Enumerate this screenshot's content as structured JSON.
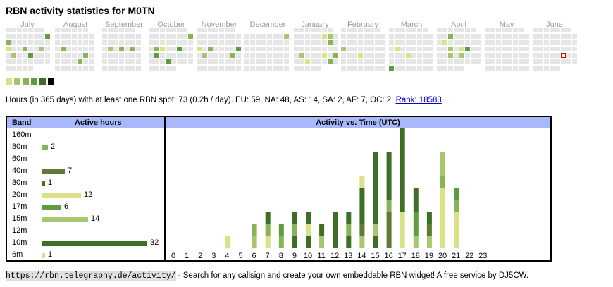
{
  "title": "RBN activity statistics for M0TN",
  "months": [
    "July",
    "August",
    "September",
    "October",
    "November",
    "December",
    "January",
    "February",
    "March",
    "April",
    "May",
    "June"
  ],
  "colors": {
    "empty": "#e6e6e6",
    "legend": [
      "#d9e286",
      "#a8c670",
      "#88b458",
      "#5f9c40",
      "#3f6e28",
      "#000000"
    ],
    "today_border": "#cc0000",
    "header_bg": "#a9b8fb"
  },
  "summary": {
    "text": "Hours (in 365 days) with at least one RBN spot: 73 (0.2h / day). EU: 59, NA: 48, AS: 14, SA: 2, AF: 7, OC: 2.",
    "rank_label": "Rank: 18583"
  },
  "band_table": {
    "header_band": "Band",
    "header_hours": "Active hours",
    "bands": [
      {
        "band": "160m",
        "hours": null,
        "color": ""
      },
      {
        "band": "80m",
        "hours": 2,
        "color": "#88b458"
      },
      {
        "band": "60m",
        "hours": null,
        "color": ""
      },
      {
        "band": "40m",
        "hours": 7,
        "color": "#5e7a34"
      },
      {
        "band": "30m",
        "hours": 1,
        "color": "#3f6e28"
      },
      {
        "band": "20m",
        "hours": 12,
        "color": "#d9e286"
      },
      {
        "band": "17m",
        "hours": 6,
        "color": "#5f9c40"
      },
      {
        "band": "15m",
        "hours": 14,
        "color": "#a8c670"
      },
      {
        "band": "12m",
        "hours": null,
        "color": ""
      },
      {
        "band": "10m",
        "hours": 32,
        "color": "#3f6e28"
      },
      {
        "band": "6m",
        "hours": 1,
        "color": "#d9e286"
      }
    ]
  },
  "chart_data": {
    "type": "bar",
    "title": "Activity vs. Time (UTC)",
    "categories": [
      "0",
      "1",
      "2",
      "3",
      "4",
      "5",
      "6",
      "7",
      "8",
      "9",
      "10",
      "11",
      "12",
      "13",
      "14",
      "15",
      "16",
      "17",
      "18",
      "19",
      "20",
      "21",
      "22",
      "23"
    ],
    "stacked": true,
    "segments_note": "each hour stacks band segments bottom-to-top; value = active hours",
    "hours": [
      [],
      [],
      [],
      [],
      [
        [
          "#d9e286",
          1
        ]
      ],
      [],
      [
        [
          "#a8c670",
          1
        ],
        [
          "#88b458",
          1
        ]
      ],
      [
        [
          "#d9e286",
          1
        ],
        [
          "#88b458",
          1
        ],
        [
          "#3f6e28",
          1
        ]
      ],
      [
        [
          "#88b458",
          1
        ],
        [
          "#5f9c40",
          1
        ]
      ],
      [
        [
          "#3f6e28",
          1
        ],
        [
          "#88b458",
          1
        ],
        [
          "#3f6e28",
          1
        ]
      ],
      [
        [
          "#3f6e28",
          1
        ],
        [
          "#d9e286",
          1
        ],
        [
          "#3f6e28",
          1
        ]
      ],
      [
        [
          "#a8c670",
          1
        ],
        [
          "#3f6e28",
          1
        ]
      ],
      [
        [
          "#3f6e28",
          3
        ]
      ],
      [
        [
          "#3f6e28",
          1
        ],
        [
          "#88b458",
          1
        ],
        [
          "#3f6e28",
          1
        ]
      ],
      [
        [
          "#a8c670",
          1
        ],
        [
          "#5e7a34",
          1
        ],
        [
          "#3f6e28",
          3
        ],
        [
          "#d9e286",
          1
        ]
      ],
      [
        [
          "#3f6e28",
          1
        ],
        [
          "#a8c670",
          1
        ],
        [
          "#3f6e28",
          6
        ]
      ],
      [
        [
          "#5e7a34",
          3
        ],
        [
          "#88b458",
          1
        ],
        [
          "#3f6e28",
          4
        ]
      ],
      [
        [
          "#d9e286",
          3
        ],
        [
          "#3f6e28",
          7
        ]
      ],
      [
        [
          "#a8c670",
          1
        ],
        [
          "#5f9c40",
          2
        ],
        [
          "#3f6e28",
          2
        ]
      ],
      [
        [
          "#a8c670",
          1
        ],
        [
          "#5e7a34",
          1
        ],
        [
          "#3f6e28",
          1
        ]
      ],
      [
        [
          "#d9e286",
          5
        ],
        [
          "#88b458",
          1
        ],
        [
          "#a8c670",
          2
        ]
      ],
      [
        [
          "#d9e286",
          3
        ],
        [
          "#88b458",
          1
        ],
        [
          "#5f9c40",
          1
        ]
      ],
      [],
      []
    ],
    "ylim": [
      0,
      11
    ]
  },
  "footer": {
    "url": "https://rbn.telegraphy.de/activity/",
    "text": " - Search for any callsign and create your own embeddable RBN widget! A free service by DJ5CW."
  }
}
